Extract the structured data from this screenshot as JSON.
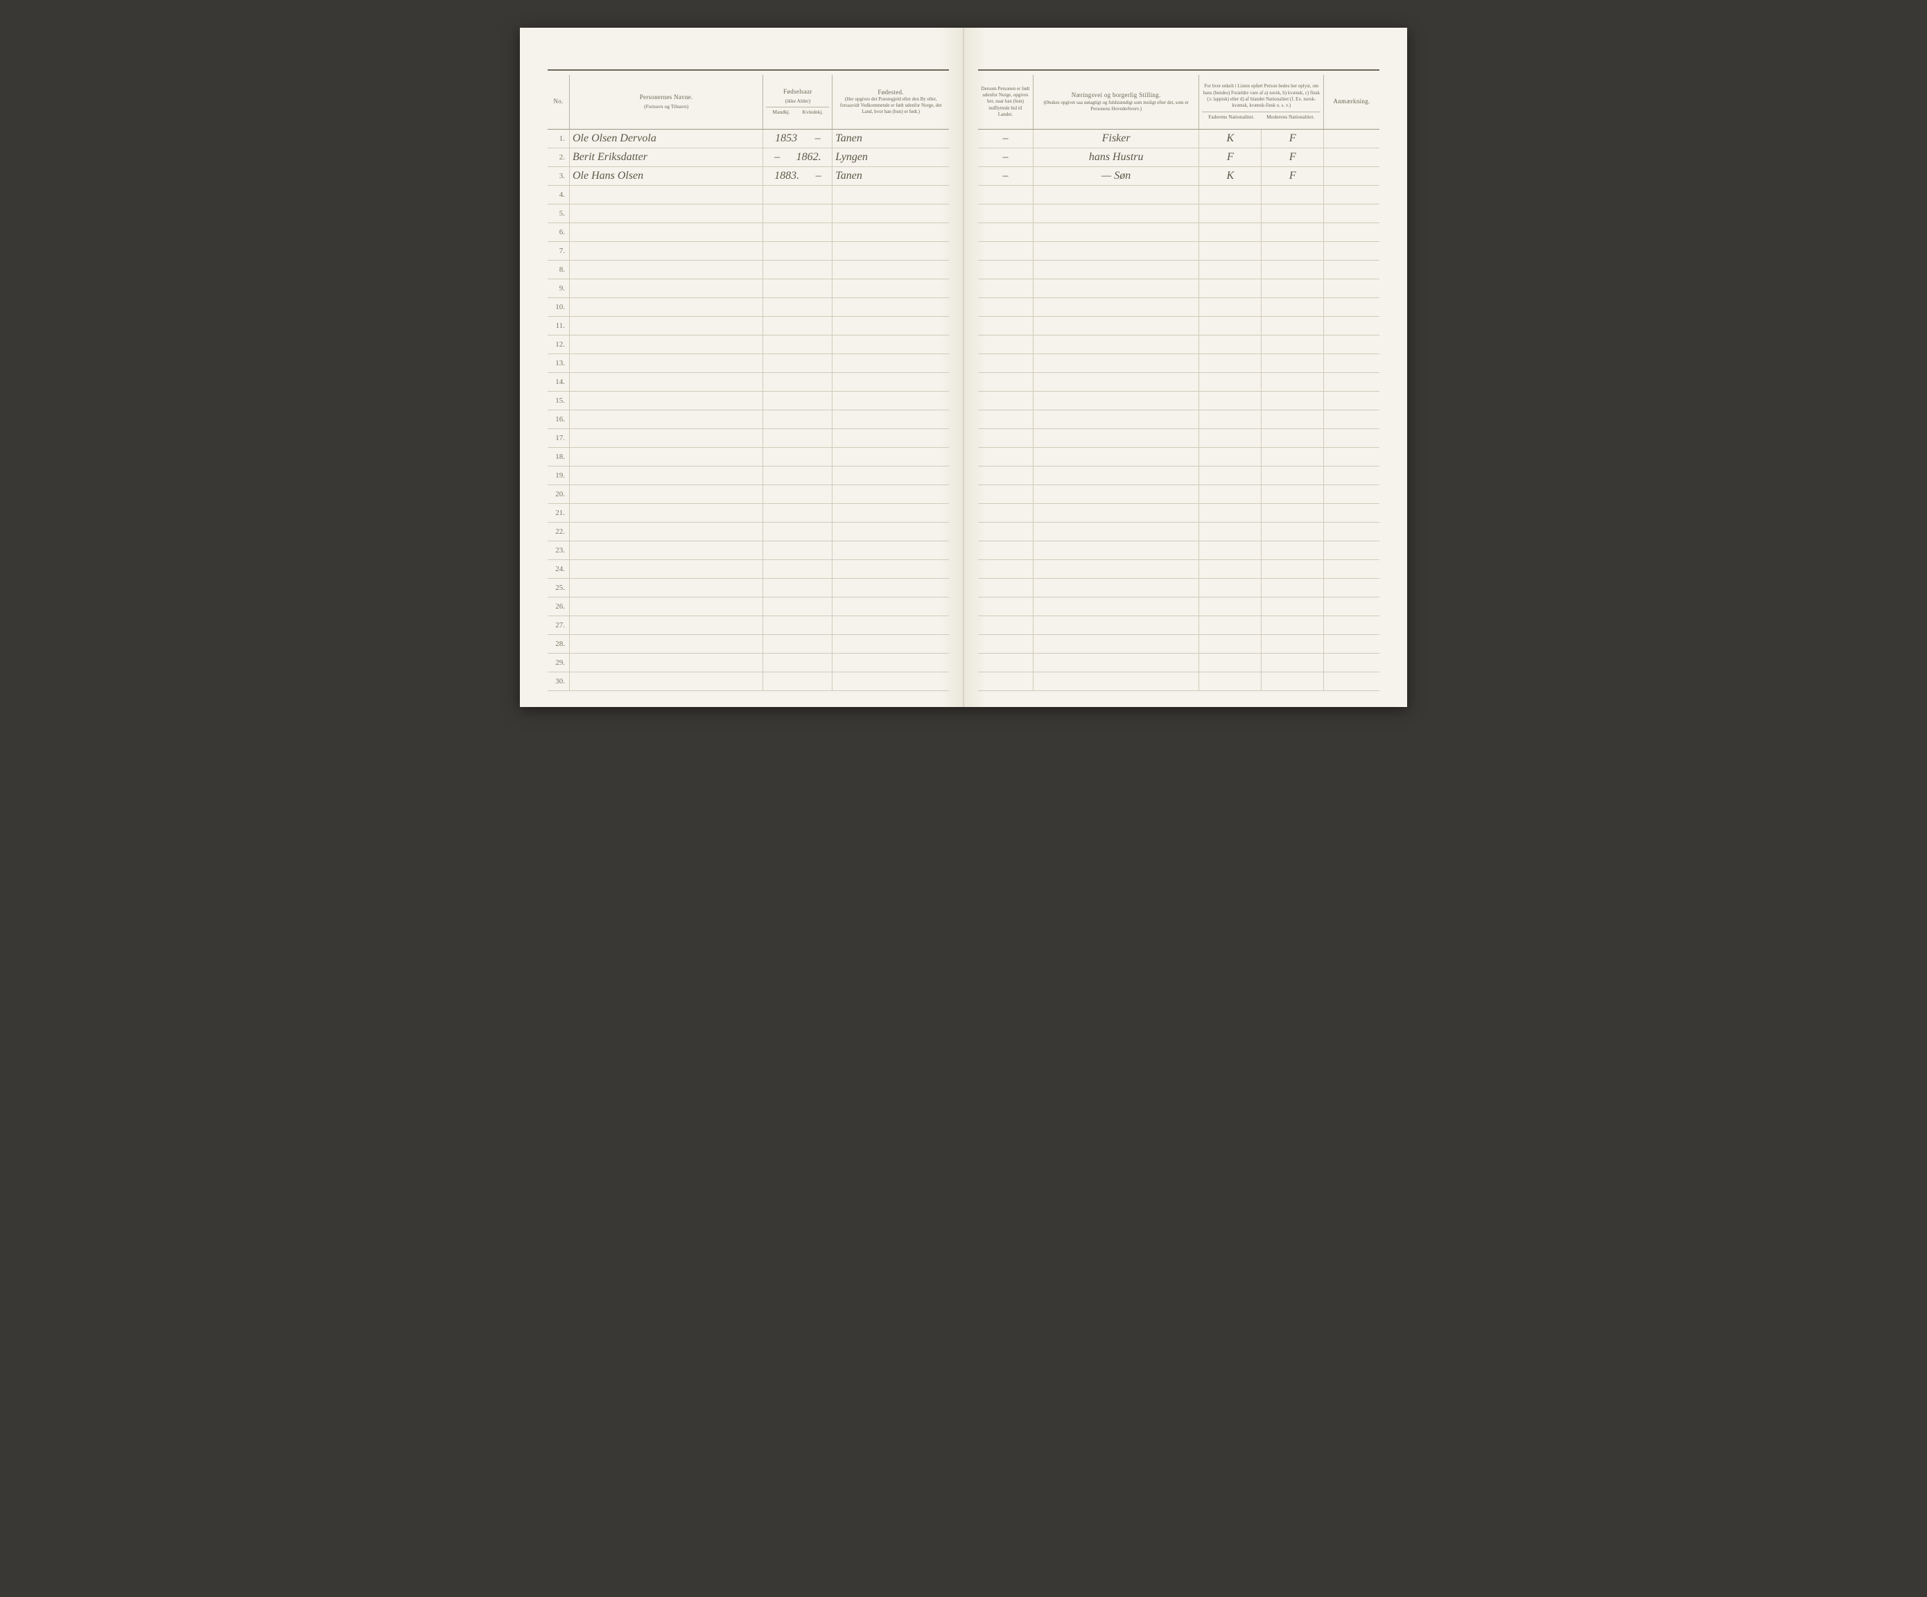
{
  "headers_left": {
    "no": "No.",
    "name_title": "Personernes Navne.",
    "name_sub": "(Fornavn og Tilnavn)",
    "year_title": "Fødselsaar",
    "year_sub": "(ikke Alder)",
    "year_m": "Mandkj.",
    "year_k": "Kvindekj.",
    "place_title": "Fødested.",
    "place_sub": "(Her opgives det Præstegjeld eller den By eller, forsaavidt Vedkommende er født udenfor Norge, det Land, hvor han (hun) er født.)"
  },
  "headers_right": {
    "abroad_title": "Dersom Personen er født udenfor Norge, opgives her, naar han (hun) indflyttede hid til Landet.",
    "occ_title": "Næringsvei og borgerlig Stilling.",
    "occ_sub": "(Ønskes opgivet saa nøiagtigt og fuldstændigt som muligt efter det, som er Personens Hovederhverv.)",
    "nat_title": "For hver enkelt i Listen opført Person bedes her oplyst, om hans (hendes) Forældre vare af a) norsk, b) kvænsk, c) finsk (ɔ: lappisk) eller d) af blandet Nationalitet (f. Ex. norsk-kvænsk, kvænsk-finsk o. s. v.)",
    "nat_f": "Faderens Nationalitet.",
    "nat_m": "Moderens Nationalitet.",
    "remark": "Anmærkning."
  },
  "rows": [
    {
      "no": "1.",
      "name": "Ole Olsen Dervola",
      "year_m": "1853",
      "year_k": "–",
      "place": "Tanen",
      "abroad": "–",
      "occ": "Fisker",
      "nat_f": "K",
      "nat_m": "F",
      "remark": ""
    },
    {
      "no": "2.",
      "name": "Berit Eriksdatter",
      "year_m": "–",
      "year_k": "1862.",
      "place": "Lyngen",
      "abroad": "–",
      "occ": "hans Hustru",
      "nat_f": "F",
      "nat_m": "F",
      "remark": ""
    },
    {
      "no": "3.",
      "name": "Ole Hans Olsen",
      "year_m": "1883.",
      "year_k": "–",
      "place": "Tanen",
      "abroad": "–",
      "occ": "—  Søn",
      "nat_f": "K",
      "nat_m": "F",
      "remark": ""
    }
  ],
  "empty_rows_left": [
    "4.",
    "5.",
    "6.",
    "7.",
    "8.",
    "9.",
    "10.",
    "11.",
    "12.",
    "13.",
    "14.",
    "15.",
    "16.",
    "17.",
    "18.",
    "19.",
    "20.",
    "21.",
    "22.",
    "23.",
    "24.",
    "25.",
    "26.",
    "27.",
    "28.",
    "29.",
    "30."
  ],
  "colors": {
    "paper": "#f5f3eb",
    "rule_dark": "#6b6658",
    "rule_light": "#cfcbbb",
    "ink": "#5c574a",
    "print": "#8a8575"
  }
}
